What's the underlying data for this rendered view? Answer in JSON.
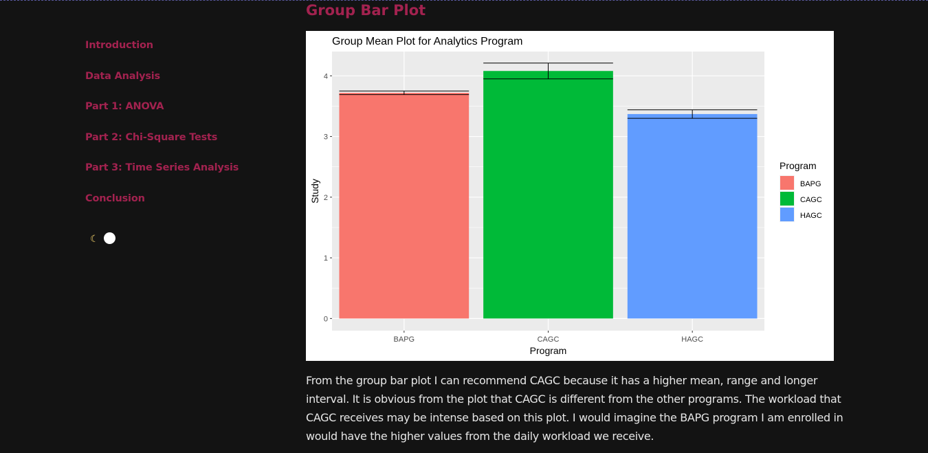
{
  "sidebar": {
    "items": [
      {
        "label": "Introduction"
      },
      {
        "label": "Data Analysis"
      },
      {
        "label": "Part 1: ANOVA"
      },
      {
        "label": "Part 2: Chi-Square Tests"
      },
      {
        "label": "Part 3: Time Series Analysis"
      },
      {
        "label": "Conclusion"
      }
    ],
    "theme_toggle": {
      "icon": "moon-icon",
      "state": "dark"
    }
  },
  "main": {
    "heading": "Group Bar Plot",
    "paragraph": "From the group bar plot I can recommend CAGC because it has a higher mean, range and longer interval. It is obvious from the plot that CAGC is different from the other programs. The workload that CAGC receives may be intense based on this plot. I would imagine the BAPG program I am enrolled in would have the higher values from the daily workload we receive."
  },
  "colors": {
    "accent": "#a2224f",
    "background": "#131313",
    "bapg": "#F8766D",
    "cagc": "#00BA38",
    "hagc": "#619CFF"
  },
  "chart_data": {
    "type": "bar",
    "title": "Group Mean Plot for Analytics Program",
    "xlabel": "Program",
    "ylabel": "Study",
    "categories": [
      "BAPG",
      "CAGC",
      "HAGC"
    ],
    "values": [
      3.72,
      4.08,
      3.37
    ],
    "error_low": [
      3.69,
      3.95,
      3.3
    ],
    "error_high": [
      3.75,
      4.21,
      3.44
    ],
    "colors": [
      "#F8766D",
      "#00BA38",
      "#619CFF"
    ],
    "ylim": [
      -0.2,
      4.4
    ],
    "yticks": [
      "0",
      "1",
      "2",
      "3",
      "4"
    ],
    "grid": true,
    "legend": {
      "title": "Program",
      "position": "right",
      "entries": [
        "BAPG",
        "CAGC",
        "HAGC"
      ]
    }
  }
}
